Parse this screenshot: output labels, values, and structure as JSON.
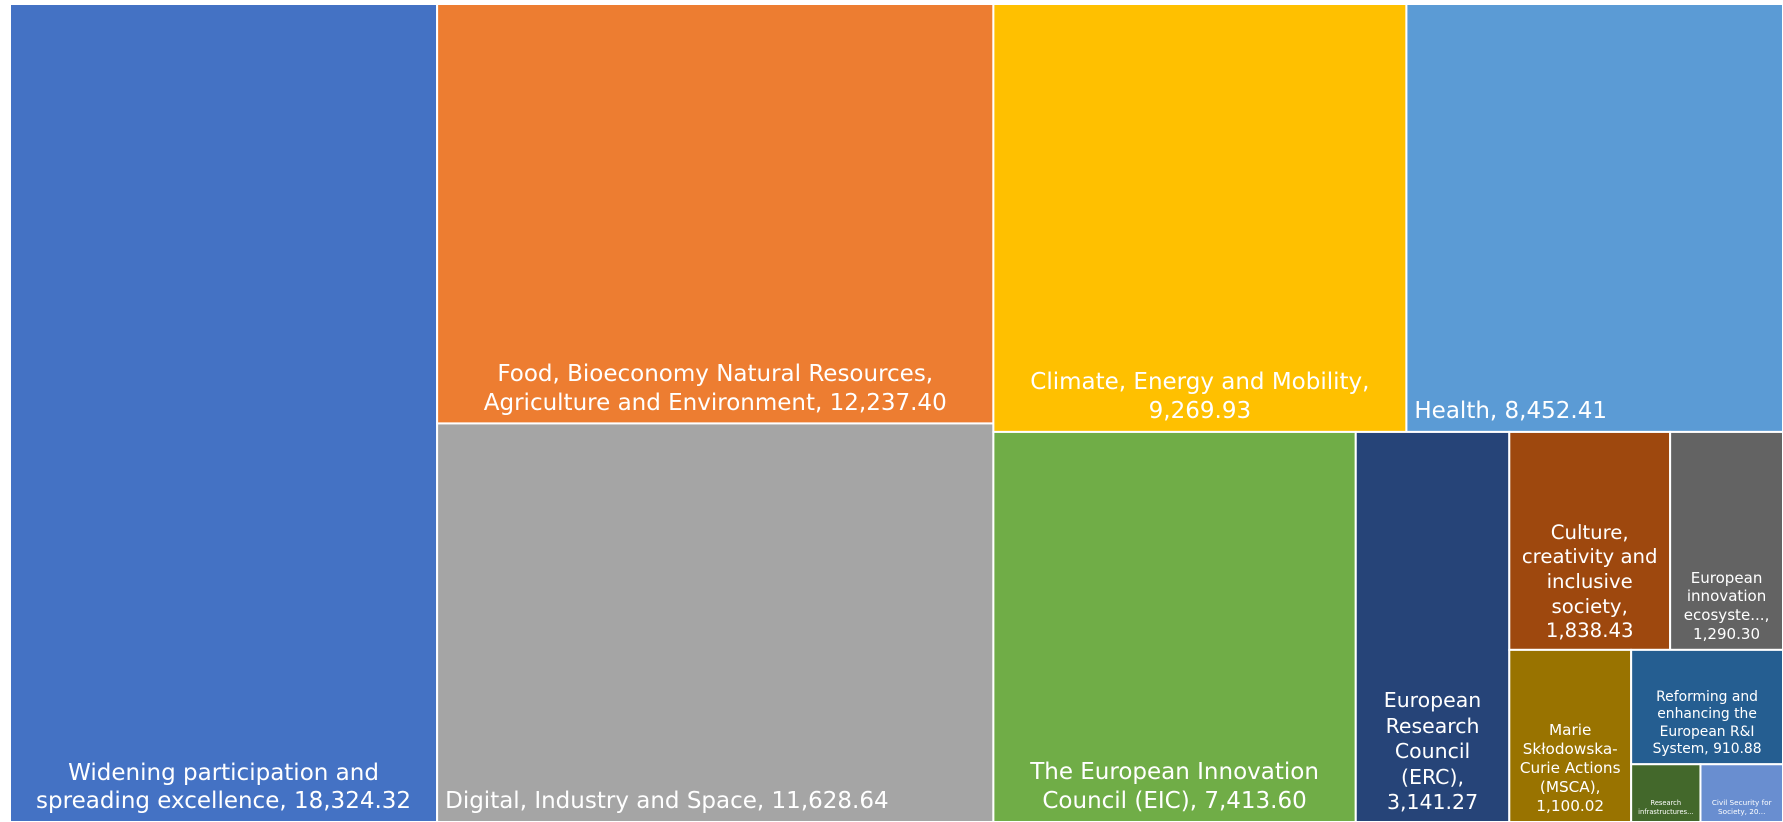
{
  "chart_data": {
    "type": "treemap",
    "categories": [
      "Widening participation and spreading excellence",
      "Food, Bioeconomy Natural Resources, Agriculture and Environment",
      "Digital, Industry and Space",
      "Climate, Energy and Mobility",
      "Health",
      "The European Innovation Council (EIC)",
      "European Research Council (ERC)",
      "Culture, creativity and inclusive society",
      "European innovation ecosyste...",
      "Marie Skłodowska-Curie Actions (MSCA)",
      "Reforming and enhancing the European R&I System",
      "Research infrastructures...",
      "Civil Security for Society, 20..."
    ],
    "values": [
      18324.32,
      12237.4,
      11628.64,
      9269.93,
      8452.41,
      7413.6,
      3141.27,
      1838.43,
      1290.3,
      1100.02,
      910.88,
      210,
      250
    ],
    "value_labels": [
      "18,324.32",
      "12,237.40",
      "11,628.64",
      "9,269.93",
      "8,452.41",
      "7,413.60",
      "3,141.27",
      "1,838.43",
      "1,290.30",
      "1,100.02",
      "910.88",
      null,
      null
    ],
    "colors": [
      "#4472c4",
      "#ed7d31",
      "#a5a5a5",
      "#ffc000",
      "#5b9bd5",
      "#70ad47",
      "#264478",
      "#9e480e",
      "#636363",
      "#997300",
      "#255e91",
      "#43682b",
      "#698ed0"
    ]
  }
}
